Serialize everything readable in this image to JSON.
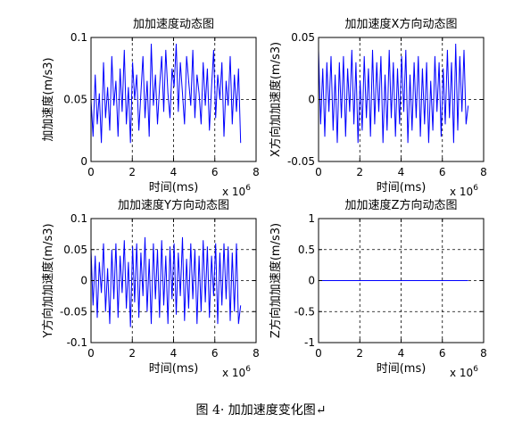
{
  "figure_caption": "图 4· 加加速度变化图↵",
  "colors": {
    "series": "#0000ff",
    "axes": "#000000",
    "grid": "#000000"
  },
  "chart_data": [
    {
      "type": "line",
      "title": "加加速度动态图",
      "xlabel": "时间(ms)",
      "ylabel": "加加速度(m/s3)",
      "x_multiplier_label": "x 10",
      "x_multiplier_exp": "6",
      "xlim": [
        0,
        8
      ],
      "ylim": [
        0,
        0.1
      ],
      "xticks": [
        0,
        2,
        4,
        6,
        8
      ],
      "xtick_labels": [
        "0",
        "2",
        "4",
        "6",
        "8"
      ],
      "yticks": [
        0,
        0.05,
        0.1
      ],
      "ytick_labels": [
        "0",
        "0.05",
        "0.1"
      ],
      "grid": true,
      "series": [
        {
          "x_range": [
            0,
            7.25
          ],
          "values": [
            0.05,
            0.02,
            0.07,
            0.03,
            0.055,
            0.015,
            0.08,
            0.035,
            0.06,
            0.025,
            0.085,
            0.045,
            0.065,
            0.02,
            0.075,
            0.04,
            0.09,
            0.03,
            0.06,
            0.015,
            0.08,
            0.05,
            0.07,
            0.025,
            0.055,
            0.085,
            0.035,
            0.065,
            0.02,
            0.095,
            0.045,
            0.07,
            0.03,
            0.06,
            0.085,
            0.04,
            0.09,
            0.055,
            0.035,
            0.075,
            0.06,
            0.095,
            0.04,
            0.08,
            0.055,
            0.03,
            0.085,
            0.065,
            0.045,
            0.09,
            0.035,
            0.07,
            0.055,
            0.03,
            0.08,
            0.045,
            0.075,
            0.025,
            0.06,
            0.09,
            0.035,
            0.07,
            0.05,
            0.08,
            0.02,
            0.065,
            0.045,
            0.085,
            0.03,
            0.07,
            0.04,
            0.075,
            0.015
          ]
        }
      ]
    },
    {
      "type": "line",
      "title": "加加速度X方向动态图",
      "xlabel": "时间(ms)",
      "ylabel": "X方向加加速度(m/s3)",
      "x_multiplier_label": "x 10",
      "x_multiplier_exp": "6",
      "xlim": [
        0,
        8
      ],
      "ylim": [
        -0.05,
        0.05
      ],
      "xticks": [
        0,
        2,
        4,
        6,
        8
      ],
      "xtick_labels": [
        "0",
        "2",
        "4",
        "6",
        "8"
      ],
      "yticks": [
        -0.05,
        0,
        0.05
      ],
      "ytick_labels": [
        "-0.05",
        "0",
        "0.05"
      ],
      "grid": true,
      "series": [
        {
          "x_range": [
            0,
            7.25
          ],
          "values": [
            0.04,
            -0.02,
            0.025,
            -0.03,
            0.03,
            -0.01,
            0.035,
            -0.025,
            0.02,
            -0.035,
            0.03,
            -0.015,
            0.035,
            -0.03,
            0.025,
            -0.01,
            0.04,
            -0.02,
            0.03,
            -0.035,
            0.015,
            -0.025,
            0.035,
            -0.015,
            0.025,
            -0.03,
            0.04,
            -0.02,
            0.03,
            -0.01,
            0.035,
            -0.035,
            0.02,
            -0.025,
            0.04,
            -0.015,
            0.03,
            -0.03,
            0.025,
            -0.02,
            0.035,
            -0.01,
            0.04,
            -0.035,
            0.02,
            -0.025,
            0.03,
            -0.015,
            0.035,
            -0.03,
            0.025,
            -0.02,
            0.03,
            -0.035,
            0.015,
            -0.025,
            0.035,
            -0.01,
            0.03,
            -0.03,
            0.025,
            -0.02,
            0.04,
            -0.015,
            0.03,
            -0.035,
            0.045,
            -0.025,
            0.035,
            -0.01,
            0.04,
            -0.02,
            -0.005
          ]
        }
      ]
    },
    {
      "type": "line",
      "title": "加加速度Y方向动态图",
      "xlabel": "时间(ms)",
      "ylabel": "Y方向加加速度(m/s3)",
      "x_multiplier_label": "x 10",
      "x_multiplier_exp": "6",
      "xlim": [
        0,
        8
      ],
      "ylim": [
        -0.1,
        0.1
      ],
      "xticks": [
        0,
        2,
        4,
        6,
        8
      ],
      "xtick_labels": [
        "0",
        "2",
        "4",
        "6",
        "8"
      ],
      "yticks": [
        -0.1,
        -0.05,
        0,
        0.05,
        0.1
      ],
      "ytick_labels": [
        "-0.1",
        "-0.05",
        "0",
        "0.05",
        "0.1"
      ],
      "grid": true,
      "series": [
        {
          "x_range": [
            0,
            7.25
          ],
          "values": [
            0.05,
            -0.04,
            0.04,
            -0.06,
            0.03,
            -0.02,
            0.06,
            -0.05,
            0.02,
            -0.07,
            0.05,
            -0.03,
            0.06,
            -0.06,
            0.04,
            -0.02,
            0.065,
            -0.045,
            0.03,
            -0.075,
            0.055,
            -0.035,
            0.06,
            -0.06,
            0.045,
            -0.025,
            0.07,
            -0.05,
            0.035,
            -0.07,
            0.06,
            -0.03,
            0.05,
            -0.06,
            0.065,
            -0.04,
            0.04,
            -0.07,
            0.055,
            -0.03,
            0.06,
            -0.055,
            0.045,
            -0.025,
            0.07,
            -0.065,
            0.035,
            -0.045,
            0.06,
            -0.03,
            0.05,
            -0.07,
            0.04,
            -0.05,
            0.065,
            -0.035,
            0.055,
            -0.06,
            0.04,
            -0.025,
            0.06,
            -0.07,
            0.045,
            -0.04,
            0.06,
            -0.03,
            0.055,
            -0.065,
            0.045,
            -0.05,
            0.06,
            -0.07,
            -0.04
          ]
        }
      ]
    },
    {
      "type": "line",
      "title": "加加速度Z方向动态图",
      "xlabel": "时间(ms)",
      "ylabel": "Z方向加加速度(m/s3)",
      "x_multiplier_label": "x 10",
      "x_multiplier_exp": "6",
      "xlim": [
        0,
        8
      ],
      "ylim": [
        -1,
        1
      ],
      "xticks": [
        0,
        2,
        4,
        6,
        8
      ],
      "xtick_labels": [
        "0",
        "2",
        "4",
        "6",
        "8"
      ],
      "yticks": [
        -1,
        -0.5,
        0,
        0.5,
        1
      ],
      "ytick_labels": [
        "-1",
        "-0.5",
        "0",
        "0.5",
        "1"
      ],
      "grid": true,
      "series": [
        {
          "x_range": [
            0,
            7.25
          ],
          "values": [
            0,
            0
          ]
        }
      ]
    }
  ]
}
